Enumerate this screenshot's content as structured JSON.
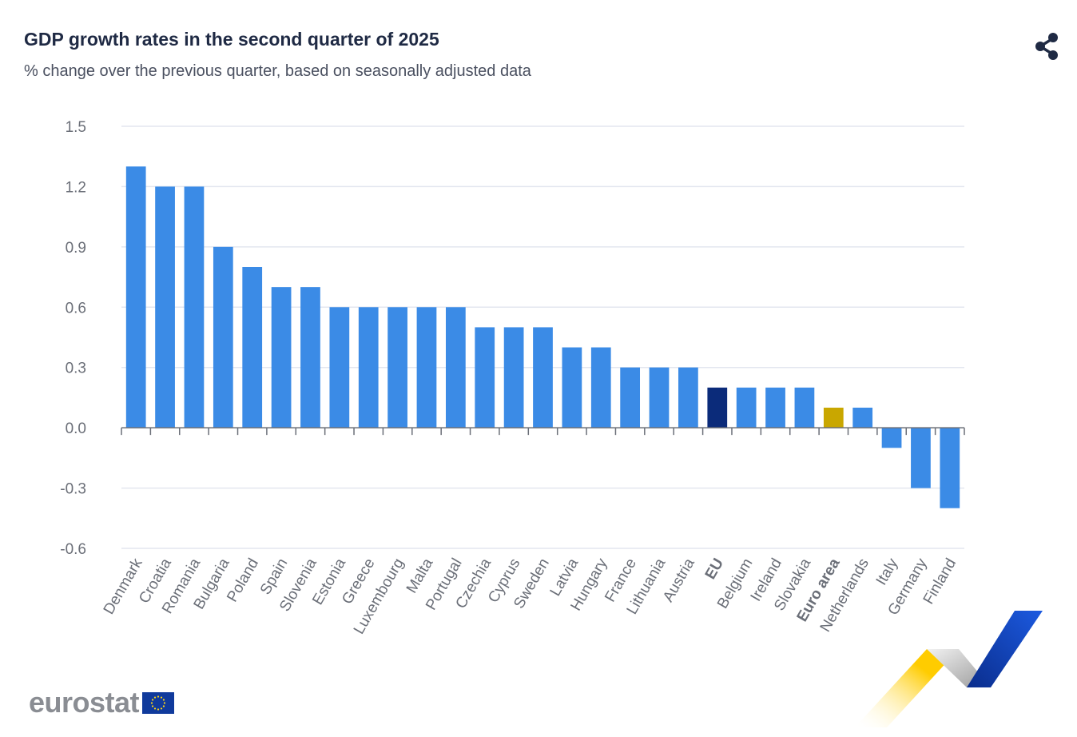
{
  "header": {
    "title": "GDP growth rates in the second quarter of 2025",
    "subtitle": "% change over the previous quarter, based on seasonally adjusted data"
  },
  "share_icon": "share-icon",
  "logo": {
    "text": "eurostat",
    "flag_icon": "eu-flag-icon"
  },
  "colors": {
    "bar": "#3b8be6",
    "eu": "#0b2b7a",
    "euro_area": "#c9a700",
    "grid": "#e3e6ef",
    "axis": "#6b6f78"
  },
  "chart_data": {
    "type": "bar",
    "title": "GDP growth rates in the second quarter of 2025",
    "subtitle": "% change over the previous quarter, based on seasonally adjusted data",
    "xlabel": "",
    "ylabel": "",
    "ylim": [
      -0.6,
      1.5
    ],
    "yticks": [
      1.5,
      1.2,
      0.9,
      0.6,
      0.3,
      0.0,
      -0.3,
      -0.6
    ],
    "ytick_labels": [
      "1.5",
      "1.2",
      "0.9",
      "0.6",
      "0.3",
      "0.0",
      "-0.3",
      "-0.6"
    ],
    "grid": true,
    "categories": [
      "Denmark",
      "Croatia",
      "Romania",
      "Bulgaria",
      "Poland",
      "Spain",
      "Slovenia",
      "Estonia",
      "Greece",
      "Luxembourg",
      "Malta",
      "Portugal",
      "Czechia",
      "Cyprus",
      "Sweden",
      "Latvia",
      "Hungary",
      "France",
      "Lithuania",
      "Austria",
      "EU",
      "Belgium",
      "Ireland",
      "Slovakia",
      "Euro area",
      "Netherlands",
      "Italy",
      "Germany",
      "Finland"
    ],
    "values": [
      1.3,
      1.2,
      1.2,
      0.9,
      0.8,
      0.7,
      0.7,
      0.6,
      0.6,
      0.6,
      0.6,
      0.6,
      0.5,
      0.5,
      0.5,
      0.4,
      0.4,
      0.3,
      0.3,
      0.3,
      0.2,
      0.2,
      0.2,
      0.2,
      0.1,
      0.1,
      -0.1,
      -0.3,
      -0.4
    ],
    "highlighted": {
      "EU": "eu",
      "Euro area": "euro_area"
    }
  }
}
